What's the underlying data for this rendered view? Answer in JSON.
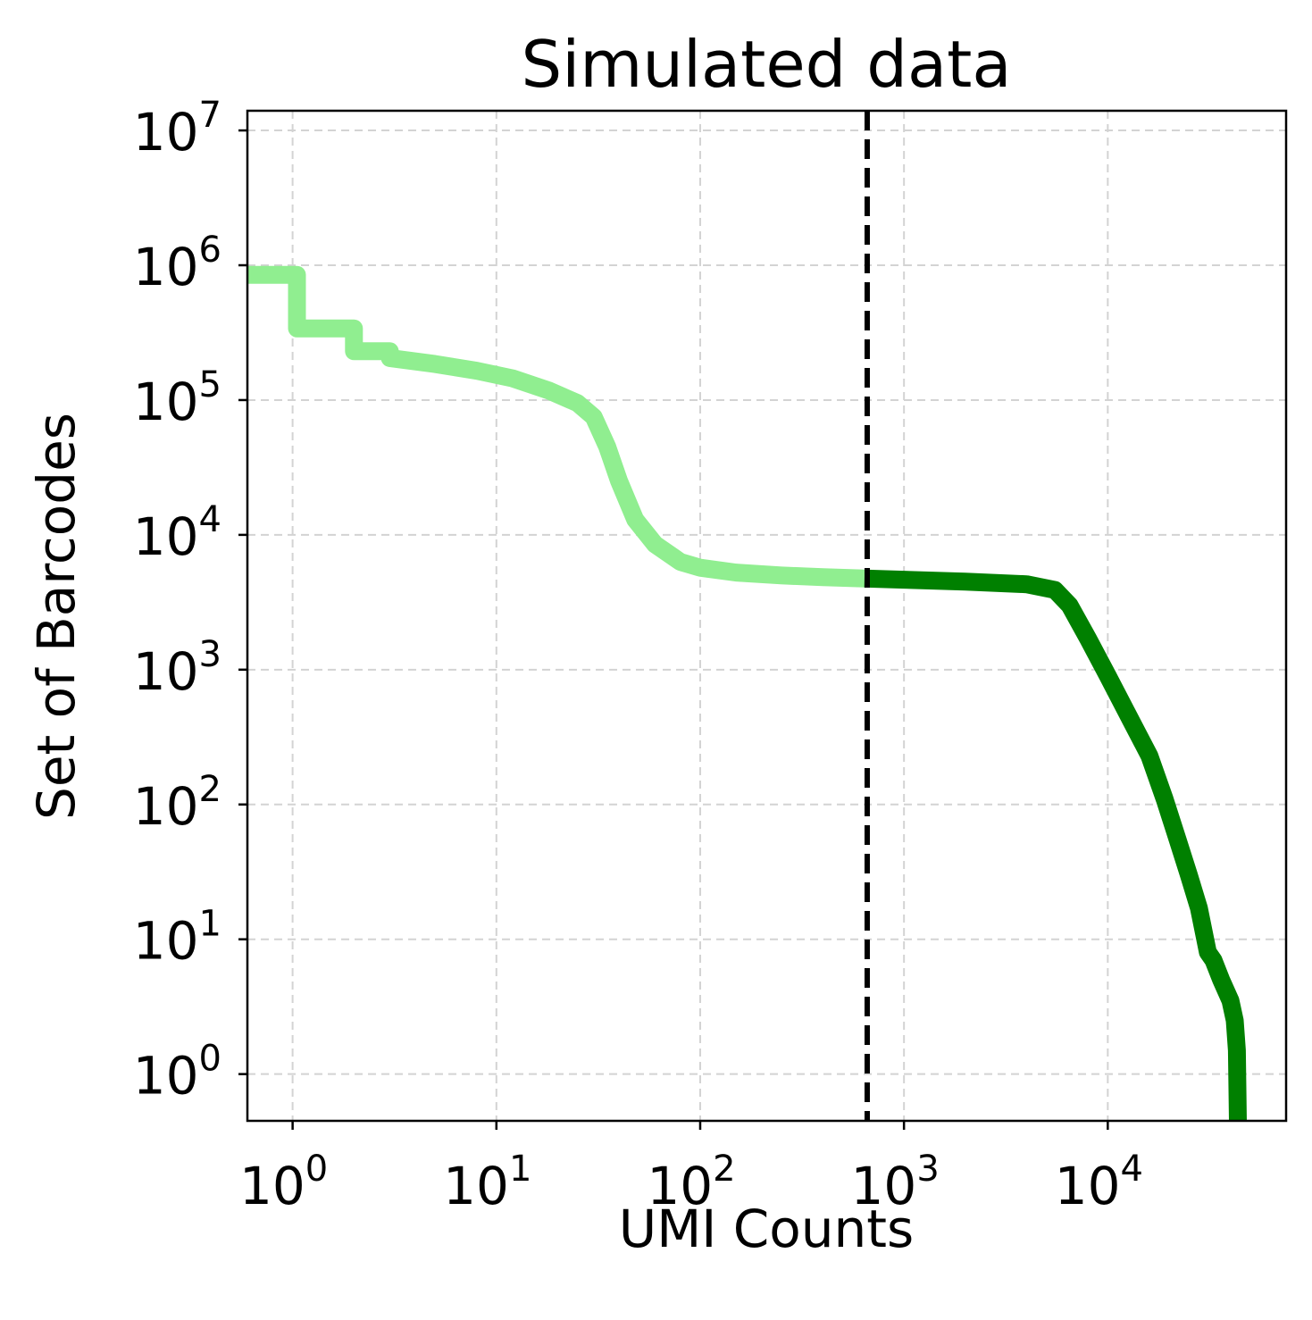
{
  "chart_data": {
    "type": "line",
    "title": "Simulated data",
    "xlabel": "UMI Counts",
    "ylabel": "Set of Barcodes",
    "x_scale": "log",
    "y_scale": "log",
    "xlim": [
      0.6,
      75000
    ],
    "ylim": [
      0.45,
      14000000
    ],
    "x_ticks": [
      {
        "base": "10",
        "exp": "0",
        "value": 1
      },
      {
        "base": "10",
        "exp": "1",
        "value": 10
      },
      {
        "base": "10",
        "exp": "2",
        "value": 100
      },
      {
        "base": "10",
        "exp": "3",
        "value": 1000
      },
      {
        "base": "10",
        "exp": "4",
        "value": 10000
      }
    ],
    "y_ticks": [
      {
        "base": "10",
        "exp": "0",
        "value": 1
      },
      {
        "base": "10",
        "exp": "1",
        "value": 10
      },
      {
        "base": "10",
        "exp": "2",
        "value": 100
      },
      {
        "base": "10",
        "exp": "3",
        "value": 1000
      },
      {
        "base": "10",
        "exp": "4",
        "value": 10000
      },
      {
        "base": "10",
        "exp": "5",
        "value": 100000
      },
      {
        "base": "10",
        "exp": "6",
        "value": 1000000
      },
      {
        "base": "10",
        "exp": "7",
        "value": 10000000
      }
    ],
    "grid": true,
    "threshold": {
      "x": 660,
      "style": "dashed",
      "color": "#000000"
    },
    "series": [
      {
        "color": "#90ee90",
        "points": [
          [
            0.6,
            850000
          ],
          [
            1.05,
            850000
          ],
          [
            1.05,
            340000
          ],
          [
            2.0,
            340000
          ],
          [
            2.0,
            230000
          ],
          [
            3.0,
            230000
          ],
          [
            3.0,
            205000
          ],
          [
            5,
            185000
          ],
          [
            8,
            165000
          ],
          [
            12,
            145000
          ],
          [
            18,
            118000
          ],
          [
            25,
            95000
          ],
          [
            30,
            75000
          ],
          [
            35,
            45000
          ],
          [
            40,
            25000
          ],
          [
            48,
            13000
          ],
          [
            60,
            8500
          ],
          [
            80,
            6300
          ],
          [
            100,
            5700
          ],
          [
            150,
            5250
          ],
          [
            250,
            5000
          ],
          [
            400,
            4850
          ],
          [
            640,
            4750
          ]
        ]
      },
      {
        "color": "#008000",
        "points": [
          [
            640,
            4750
          ],
          [
            1000,
            4650
          ],
          [
            2000,
            4500
          ],
          [
            4000,
            4300
          ],
          [
            5500,
            3900
          ],
          [
            6500,
            3000
          ],
          [
            8000,
            1700
          ],
          [
            10000,
            900
          ],
          [
            13000,
            420
          ],
          [
            16000,
            230
          ],
          [
            19000,
            110
          ],
          [
            22000,
            55
          ],
          [
            25000,
            30
          ],
          [
            28000,
            17
          ],
          [
            31000,
            8
          ],
          [
            33000,
            7
          ],
          [
            36000,
            5
          ],
          [
            40000,
            3.5
          ],
          [
            42000,
            2.5
          ],
          [
            43000,
            1.5
          ],
          [
            43500,
            0.45
          ]
        ]
      }
    ]
  }
}
